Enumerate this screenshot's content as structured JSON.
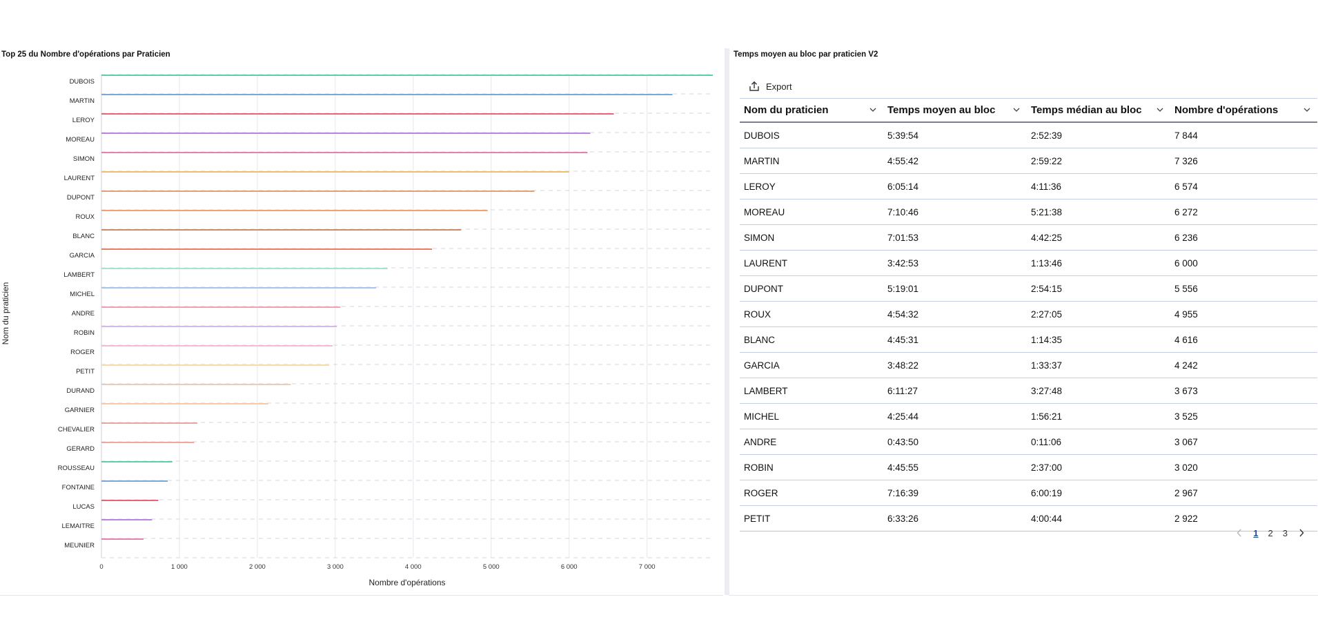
{
  "left_panel": {
    "title": "Top 25 du Nombre d'opérations par Praticien"
  },
  "right_panel": {
    "title": "Temps moyen au bloc par praticien V2",
    "export_label": "Export",
    "columns": [
      "Nom du praticien",
      "Temps moyen au bloc",
      "Temps médian au bloc",
      "Nombre d'opérations"
    ],
    "rows": [
      [
        "DUBOIS",
        "5:39:54",
        "2:52:39",
        "7 844"
      ],
      [
        "MARTIN",
        "4:55:42",
        "2:59:22",
        "7 326"
      ],
      [
        "LEROY",
        "6:05:14",
        "4:11:36",
        "6 574"
      ],
      [
        "MOREAU",
        "7:10:46",
        "5:21:38",
        "6 272"
      ],
      [
        "SIMON",
        "7:01:53",
        "4:42:25",
        "6 236"
      ],
      [
        "LAURENT",
        "3:42:53",
        "1:13:46",
        "6 000"
      ],
      [
        "DUPONT",
        "5:19:01",
        "2:54:15",
        "5 556"
      ],
      [
        "ROUX",
        "4:54:32",
        "2:27:05",
        "4 955"
      ],
      [
        "BLANC",
        "4:45:31",
        "1:14:35",
        "4 616"
      ],
      [
        "GARCIA",
        "3:48:22",
        "1:33:37",
        "4 242"
      ],
      [
        "LAMBERT",
        "6:11:27",
        "3:27:48",
        "3 673"
      ],
      [
        "MICHEL",
        "4:25:44",
        "1:56:21",
        "3 525"
      ],
      [
        "ANDRE",
        "0:43:50",
        "0:11:06",
        "3 067"
      ],
      [
        "ROBIN",
        "4:45:55",
        "2:37:00",
        "3 020"
      ],
      [
        "ROGER",
        "7:16:39",
        "6:00:19",
        "2 967"
      ],
      [
        "PETIT",
        "6:33:26",
        "4:00:44",
        "2 922"
      ]
    ],
    "pagination": {
      "pages": [
        "1",
        "2",
        "3"
      ],
      "current": "1"
    }
  },
  "chart_data": {
    "type": "bar",
    "orientation": "horizontal",
    "title": "Top 25 du Nombre d'opérations par Praticien",
    "xlabel": "Nombre d'opérations",
    "ylabel": "Nom du praticien",
    "xlim": [
      0,
      7844
    ],
    "xticks": [
      0,
      1000,
      2000,
      3000,
      4000,
      5000,
      6000,
      7000
    ],
    "xtick_labels": [
      "0",
      "1 000",
      "2 000",
      "3 000",
      "4 000",
      "5 000",
      "6 000",
      "7 000"
    ],
    "grid": true,
    "categories": [
      "DUBOIS",
      "MARTIN",
      "LEROY",
      "MOREAU",
      "SIMON",
      "LAURENT",
      "DUPONT",
      "ROUX",
      "BLANC",
      "GARCIA",
      "LAMBERT",
      "MICHEL",
      "ANDRE",
      "ROBIN",
      "ROGER",
      "PETIT",
      "DURAND",
      "GARNIER",
      "CHEVALIER",
      "GERARD",
      "ROUSSEAU",
      "FONTAINE",
      "LUCAS",
      "LEMAITRE",
      "MEUNIER"
    ],
    "values": [
      7844,
      7326,
      6574,
      6272,
      6236,
      6000,
      5556,
      4955,
      4616,
      4242,
      3673,
      3525,
      3067,
      3020,
      2967,
      2922,
      2430,
      2140,
      1230,
      1190,
      910,
      850,
      730,
      650,
      540
    ],
    "colors": [
      "#5ccfa4",
      "#7aa6d8",
      "#e8637a",
      "#b884e0",
      "#e77fb3",
      "#efbe6f",
      "#e0a07a",
      "#f2a170",
      "#c98a6a",
      "#e58066",
      "#a8e4cd",
      "#a6c5ec",
      "#f0a0b0",
      "#d4b8ee",
      "#f2b9d8",
      "#f6dba9",
      "#e8cdbb",
      "#f8c8a8",
      "#e4a5a5",
      "#f0a59a",
      "#5ccfa4",
      "#7aa6d8",
      "#e8637a",
      "#b884e0",
      "#e77fb3"
    ]
  }
}
